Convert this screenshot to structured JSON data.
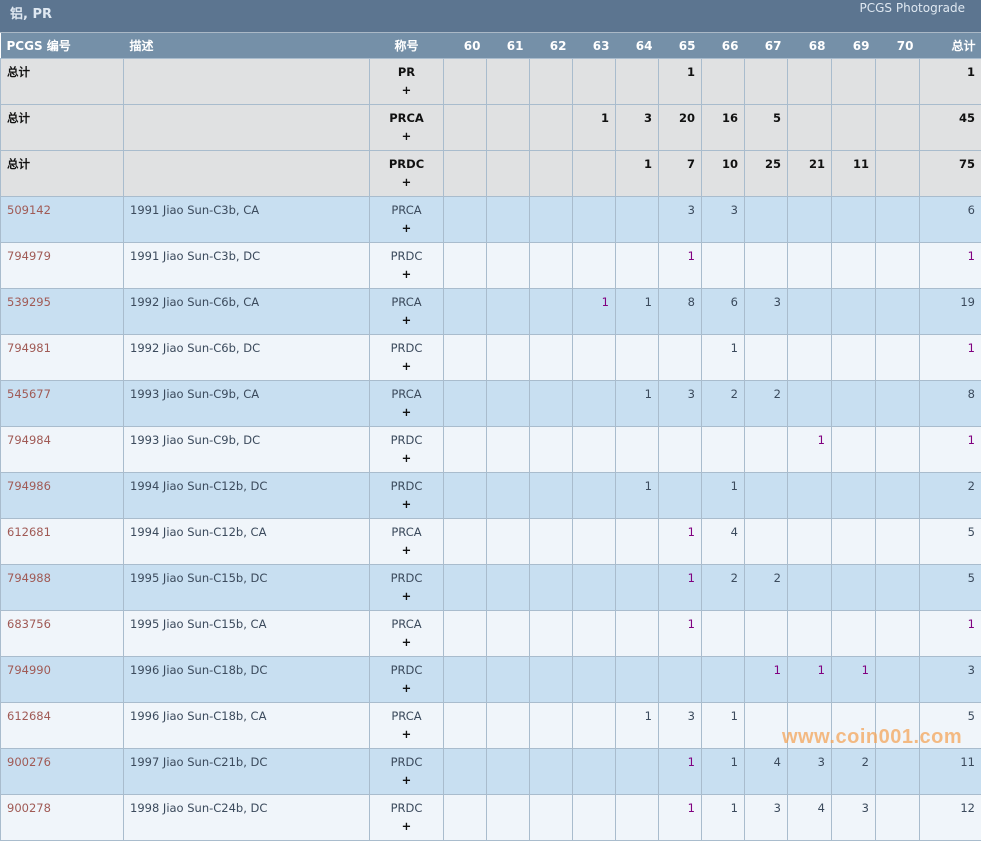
{
  "header": {
    "title": "铝, PR",
    "subtitle": "PCGS Photograde"
  },
  "columns": [
    "PCGS 编号",
    "描述",
    "称号",
    "60",
    "61",
    "62",
    "63",
    "64",
    "65",
    "66",
    "67",
    "68",
    "69",
    "70",
    "总计"
  ],
  "totals": [
    {
      "label": "总计",
      "designation": "PR",
      "plus": "+",
      "grades": [
        "",
        "",
        "",
        "",
        "",
        "1",
        "",
        "",
        "",
        "",
        ""
      ],
      "total": "1"
    },
    {
      "label": "总计",
      "designation": "PRCA",
      "plus": "+",
      "grades": [
        "",
        "",
        "",
        "1",
        "3",
        "20",
        "16",
        "5",
        "",
        "",
        ""
      ],
      "total": "45"
    },
    {
      "label": "总计",
      "designation": "PRDC",
      "plus": "+",
      "grades": [
        "",
        "",
        "",
        "",
        "1",
        "7",
        "10",
        "25",
        "21",
        "11",
        ""
      ],
      "total": "75"
    }
  ],
  "rows": [
    {
      "id": "509142",
      "desc": "1991 Jiao Sun-C3b, CA",
      "designation": "PRCA",
      "plus": "+",
      "grades": [
        "",
        "",
        "",
        "",
        "",
        "3",
        "3",
        "",
        "",
        "",
        ""
      ],
      "total": "6",
      "visited": []
    },
    {
      "id": "794979",
      "desc": "1991 Jiao Sun-C3b, DC",
      "designation": "PRDC",
      "plus": "+",
      "grades": [
        "",
        "",
        "",
        "",
        "",
        "1",
        "",
        "",
        "",
        "",
        ""
      ],
      "total": "1",
      "visited": [
        5,
        11
      ]
    },
    {
      "id": "539295",
      "desc": "1992 Jiao Sun-C6b, CA",
      "designation": "PRCA",
      "plus": "+",
      "grades": [
        "",
        "",
        "",
        "1",
        "1",
        "8",
        "6",
        "3",
        "",
        "",
        ""
      ],
      "total": "19",
      "visited": [
        3
      ]
    },
    {
      "id": "794981",
      "desc": "1992 Jiao Sun-C6b, DC",
      "designation": "PRDC",
      "plus": "+",
      "grades": [
        "",
        "",
        "",
        "",
        "",
        "",
        "1",
        "",
        "",
        "",
        ""
      ],
      "total": "1",
      "visited": [
        11
      ]
    },
    {
      "id": "545677",
      "desc": "1993 Jiao Sun-C9b, CA",
      "designation": "PRCA",
      "plus": "+",
      "grades": [
        "",
        "",
        "",
        "",
        "1",
        "3",
        "2",
        "2",
        "",
        "",
        ""
      ],
      "total": "8",
      "visited": []
    },
    {
      "id": "794984",
      "desc": "1993 Jiao Sun-C9b, DC",
      "designation": "PRDC",
      "plus": "+",
      "grades": [
        "",
        "",
        "",
        "",
        "",
        "",
        "",
        "",
        "1",
        "",
        ""
      ],
      "total": "1",
      "visited": [
        8,
        11
      ]
    },
    {
      "id": "794986",
      "desc": "1994 Jiao Sun-C12b, DC",
      "designation": "PRDC",
      "plus": "+",
      "grades": [
        "",
        "",
        "",
        "",
        "1",
        "",
        "1",
        "",
        "",
        "",
        ""
      ],
      "total": "2",
      "visited": []
    },
    {
      "id": "612681",
      "desc": "1994 Jiao Sun-C12b, CA",
      "designation": "PRCA",
      "plus": "+",
      "grades": [
        "",
        "",
        "",
        "",
        "",
        "1",
        "4",
        "",
        "",
        "",
        ""
      ],
      "total": "5",
      "visited": [
        5
      ]
    },
    {
      "id": "794988",
      "desc": "1995 Jiao Sun-C15b, DC",
      "designation": "PRDC",
      "plus": "+",
      "grades": [
        "",
        "",
        "",
        "",
        "",
        "1",
        "2",
        "2",
        "",
        "",
        ""
      ],
      "total": "5",
      "visited": [
        5
      ]
    },
    {
      "id": "683756",
      "desc": "1995 Jiao Sun-C15b, CA",
      "designation": "PRCA",
      "plus": "+",
      "grades": [
        "",
        "",
        "",
        "",
        "",
        "1",
        "",
        "",
        "",
        "",
        ""
      ],
      "total": "1",
      "visited": [
        5,
        11
      ]
    },
    {
      "id": "794990",
      "desc": "1996 Jiao Sun-C18b, DC",
      "designation": "PRDC",
      "plus": "+",
      "grades": [
        "",
        "",
        "",
        "",
        "",
        "",
        "",
        "1",
        "1",
        "1",
        ""
      ],
      "total": "3",
      "visited": [
        7,
        8,
        9
      ]
    },
    {
      "id": "612684",
      "desc": "1996 Jiao Sun-C18b, CA",
      "designation": "PRCA",
      "plus": "+",
      "grades": [
        "",
        "",
        "",
        "",
        "1",
        "3",
        "1",
        "",
        "",
        "",
        ""
      ],
      "total": "5",
      "visited": []
    },
    {
      "id": "900276",
      "desc": "1997 Jiao Sun-C21b, DC",
      "designation": "PRDC",
      "plus": "+",
      "grades": [
        "",
        "",
        "",
        "",
        "",
        "1",
        "1",
        "4",
        "3",
        "2",
        ""
      ],
      "total": "11",
      "visited": [
        5
      ]
    },
    {
      "id": "900278",
      "desc": "1998 Jiao Sun-C24b, DC",
      "designation": "PRDC",
      "plus": "+",
      "grades": [
        "",
        "",
        "",
        "",
        "",
        "1",
        "1",
        "3",
        "4",
        "3",
        ""
      ],
      "total": "12",
      "visited": [
        5
      ]
    }
  ],
  "colors": {
    "title_bar": "#5c7590",
    "header_row": "#7590a8",
    "row_odd": "#c8dff1",
    "row_even": "#f0f5fa",
    "total_row": "#e0e1e2",
    "id_link": "#a05a55",
    "visited_link": "#800080"
  },
  "watermark": "www.coin001.com"
}
